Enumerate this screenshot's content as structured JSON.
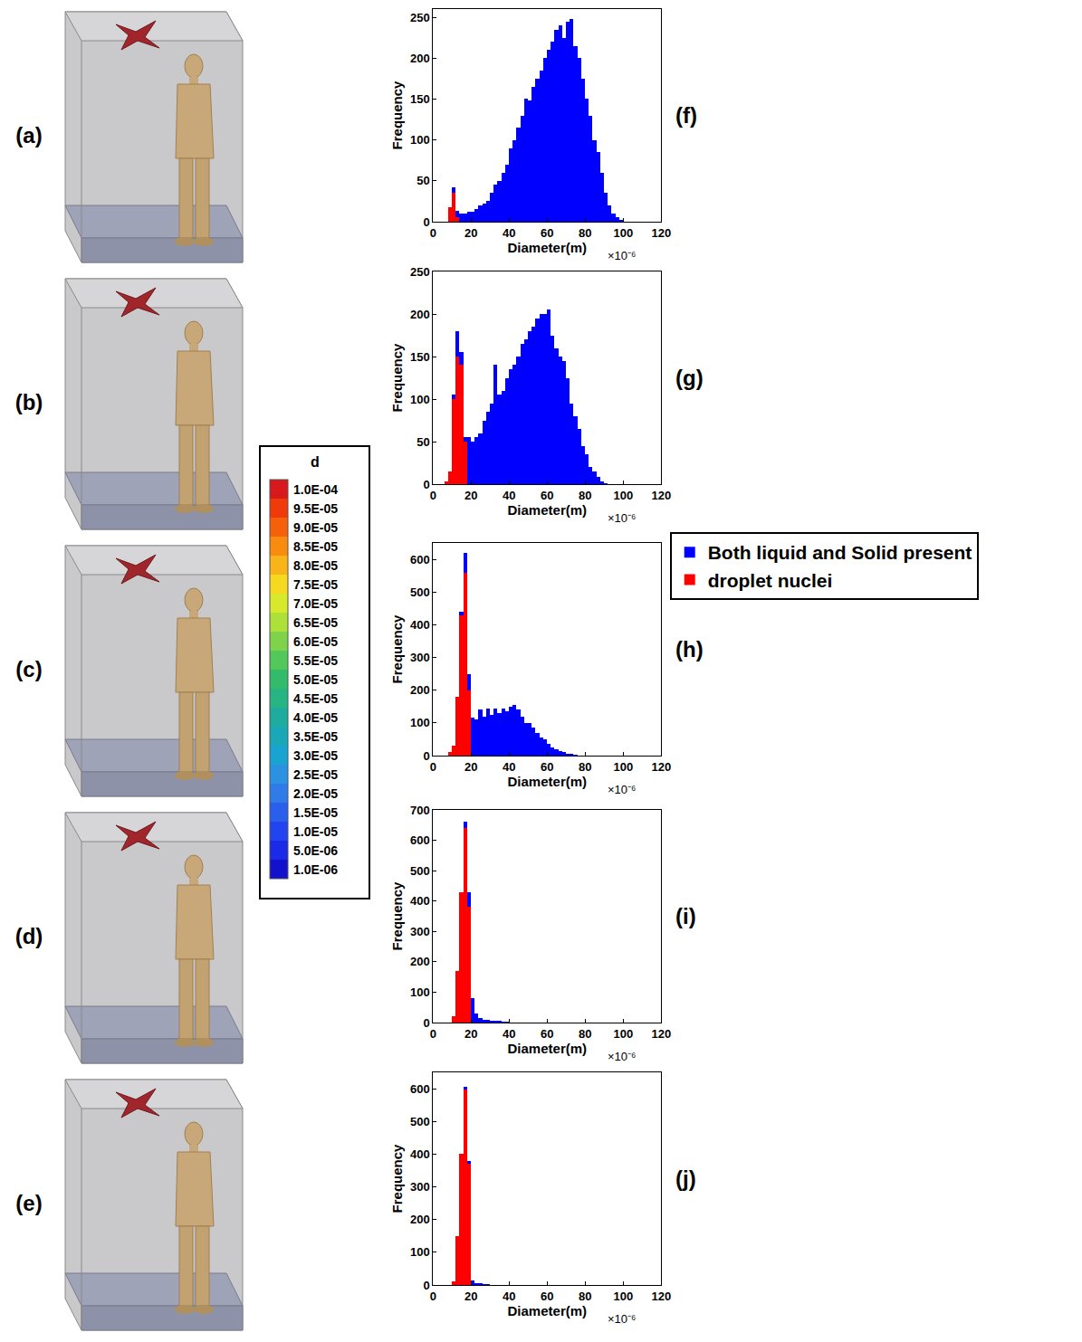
{
  "chart_data": [
    {
      "type": "histogram",
      "title": "(f)",
      "xlabel": "Diameter(m)",
      "ylabel": "Frequency",
      "annotations": [
        "×10⁻⁶"
      ],
      "stacked": true,
      "grid": false,
      "bins": [
        0,
        2,
        4,
        6,
        8,
        10,
        12,
        14,
        16,
        18,
        20,
        22,
        24,
        26,
        28,
        30,
        32,
        34,
        36,
        38,
        40,
        42,
        44,
        46,
        48,
        50,
        52,
        54,
        56,
        58,
        60,
        62,
        64,
        66,
        68,
        70,
        72,
        74,
        76,
        78,
        80,
        82,
        84,
        86,
        88,
        90,
        92,
        94,
        96,
        98,
        100,
        102,
        104,
        106,
        108,
        110,
        112,
        114,
        116,
        118,
        120
      ],
      "xlim": [
        0,
        120
      ],
      "xticks": [
        0,
        20,
        40,
        60,
        80,
        100,
        120
      ],
      "ylim": [
        0,
        260
      ],
      "yticks": [
        0,
        50,
        100,
        150,
        200,
        250
      ],
      "series": [
        {
          "name": "droplet nuclei",
          "color": "#ff0000",
          "values": [
            0,
            0,
            0,
            0,
            18,
            35,
            5,
            0,
            0,
            0,
            0,
            0,
            0,
            0,
            0,
            0,
            0,
            0,
            0,
            0,
            0,
            0,
            0,
            0,
            0,
            0,
            0,
            0,
            0,
            0,
            0,
            0,
            0,
            0,
            0,
            0,
            0,
            0,
            0,
            0,
            0,
            0,
            0,
            0,
            0,
            0,
            0,
            0,
            0,
            0,
            0,
            0,
            0,
            0,
            0,
            0,
            0,
            0,
            0,
            0
          ]
        },
        {
          "name": "Both liquid and Solid present",
          "color": "#0000ff",
          "values": [
            0,
            0,
            0,
            0,
            0,
            7,
            8,
            10,
            10,
            12,
            12,
            15,
            20,
            22,
            25,
            35,
            45,
            50,
            60,
            70,
            90,
            100,
            115,
            130,
            150,
            148,
            165,
            175,
            185,
            200,
            210,
            220,
            235,
            240,
            225,
            245,
            248,
            215,
            200,
            175,
            150,
            130,
            100,
            85,
            60,
            35,
            20,
            10,
            5,
            2,
            0,
            0,
            0,
            0,
            0,
            0,
            0,
            0,
            0,
            0
          ]
        }
      ]
    },
    {
      "type": "histogram",
      "title": "(g)",
      "xlabel": "Diameter(m)",
      "ylabel": "Frequency",
      "annotations": [
        "×10⁻⁶"
      ],
      "stacked": true,
      "grid": false,
      "bins": [
        0,
        2,
        4,
        6,
        8,
        10,
        12,
        14,
        16,
        18,
        20,
        22,
        24,
        26,
        28,
        30,
        32,
        34,
        36,
        38,
        40,
        42,
        44,
        46,
        48,
        50,
        52,
        54,
        56,
        58,
        60,
        62,
        64,
        66,
        68,
        70,
        72,
        74,
        76,
        78,
        80,
        82,
        84,
        86,
        88,
        90,
        92,
        94,
        96,
        98,
        100,
        102,
        104,
        106,
        108,
        110,
        112,
        114,
        116,
        118,
        120
      ],
      "xlim": [
        0,
        120
      ],
      "xticks": [
        0,
        20,
        40,
        60,
        80,
        100,
        120
      ],
      "ylim": [
        0,
        250
      ],
      "yticks": [
        0,
        50,
        100,
        150,
        200,
        250
      ],
      "series": [
        {
          "name": "droplet nuclei",
          "color": "#ff0000",
          "values": [
            0,
            0,
            0,
            3,
            15,
            100,
            150,
            140,
            50,
            0,
            0,
            0,
            0,
            0,
            0,
            0,
            0,
            0,
            0,
            0,
            0,
            0,
            0,
            0,
            0,
            0,
            0,
            0,
            0,
            0,
            0,
            0,
            0,
            0,
            0,
            0,
            0,
            0,
            0,
            0,
            0,
            0,
            0,
            0,
            0,
            0,
            0,
            0,
            0,
            0,
            0,
            0,
            0,
            0,
            0,
            0,
            0,
            0,
            0,
            0
          ]
        },
        {
          "name": "Both liquid and Solid present",
          "color": "#0000ff",
          "values": [
            0,
            0,
            0,
            0,
            0,
            5,
            30,
            15,
            5,
            55,
            50,
            55,
            60,
            75,
            85,
            95,
            140,
            105,
            110,
            125,
            135,
            140,
            150,
            165,
            170,
            180,
            185,
            195,
            200,
            200,
            205,
            175,
            160,
            150,
            145,
            125,
            95,
            80,
            65,
            45,
            35,
            20,
            15,
            8,
            3,
            1,
            0,
            0,
            0,
            0,
            0,
            0,
            0,
            0,
            0,
            0,
            0,
            0,
            0,
            0
          ]
        }
      ]
    },
    {
      "type": "histogram",
      "title": "(h)",
      "xlabel": "Diameter(m)",
      "ylabel": "Frequency",
      "annotations": [
        "×10⁻⁶"
      ],
      "stacked": true,
      "grid": false,
      "legend": "right",
      "bins": [
        0,
        2,
        4,
        6,
        8,
        10,
        12,
        14,
        16,
        18,
        20,
        22,
        24,
        26,
        28,
        30,
        32,
        34,
        36,
        38,
        40,
        42,
        44,
        46,
        48,
        50,
        52,
        54,
        56,
        58,
        60,
        62,
        64,
        66,
        68,
        70,
        72,
        74,
        76,
        78,
        80,
        82,
        84,
        86,
        88,
        90,
        92,
        94,
        96,
        98,
        100,
        102,
        104,
        106,
        108,
        110,
        112,
        114,
        116,
        118,
        120
      ],
      "xlim": [
        0,
        120
      ],
      "xticks": [
        0,
        20,
        40,
        60,
        80,
        100,
        120
      ],
      "ylim": [
        0,
        650
      ],
      "yticks": [
        0,
        100,
        200,
        300,
        400,
        500,
        600
      ],
      "series": [
        {
          "name": "droplet nuclei",
          "color": "#ff0000",
          "values": [
            0,
            0,
            0,
            0,
            10,
            30,
            180,
            430,
            560,
            200,
            0,
            0,
            0,
            0,
            0,
            0,
            0,
            0,
            0,
            0,
            0,
            0,
            0,
            0,
            0,
            0,
            0,
            0,
            0,
            0,
            0,
            0,
            0,
            0,
            0,
            0,
            0,
            0,
            0,
            0,
            0,
            0,
            0,
            0,
            0,
            0,
            0,
            0,
            0,
            0,
            0,
            0,
            0,
            0,
            0,
            0,
            0,
            0,
            0,
            0
          ]
        },
        {
          "name": "Both liquid and Solid present",
          "color": "#0000ff",
          "values": [
            0,
            0,
            0,
            0,
            0,
            0,
            0,
            10,
            60,
            50,
            115,
            110,
            140,
            120,
            145,
            125,
            145,
            130,
            145,
            135,
            150,
            155,
            140,
            120,
            100,
            100,
            85,
            70,
            55,
            50,
            35,
            25,
            20,
            15,
            10,
            5,
            3,
            2,
            0,
            0,
            0,
            0,
            0,
            0,
            0,
            0,
            0,
            0,
            0,
            0,
            0,
            0,
            0,
            0,
            0,
            0,
            0,
            0,
            0,
            0
          ]
        }
      ]
    },
    {
      "type": "histogram",
      "title": "(i)",
      "xlabel": "Diameter(m)",
      "ylabel": "Frequency",
      "annotations": [
        "×10⁻⁶"
      ],
      "stacked": true,
      "grid": false,
      "bins": [
        0,
        2,
        4,
        6,
        8,
        10,
        12,
        14,
        16,
        18,
        20,
        22,
        24,
        26,
        28,
        30,
        32,
        34,
        36,
        38,
        40,
        42,
        44,
        46,
        48,
        50,
        52,
        54,
        56,
        58,
        60,
        62,
        64,
        66,
        68,
        70,
        72,
        74,
        76,
        78,
        80,
        82,
        84,
        86,
        88,
        90,
        92,
        94,
        96,
        98,
        100,
        102,
        104,
        106,
        108,
        110,
        112,
        114,
        116,
        118,
        120
      ],
      "xlim": [
        0,
        120
      ],
      "xticks": [
        0,
        20,
        40,
        60,
        80,
        100,
        120
      ],
      "ylim": [
        0,
        700
      ],
      "yticks": [
        0,
        100,
        200,
        300,
        400,
        500,
        600,
        700
      ],
      "series": [
        {
          "name": "droplet nuclei",
          "color": "#ff0000",
          "values": [
            0,
            0,
            0,
            0,
            0,
            20,
            170,
            430,
            640,
            380,
            0,
            0,
            0,
            0,
            0,
            0,
            0,
            0,
            0,
            0,
            0,
            0,
            0,
            0,
            0,
            0,
            0,
            0,
            0,
            0,
            0,
            0,
            0,
            0,
            0,
            0,
            0,
            0,
            0,
            0,
            0,
            0,
            0,
            0,
            0,
            0,
            0,
            0,
            0,
            0,
            0,
            0,
            0,
            0,
            0,
            0,
            0,
            0,
            0,
            0
          ]
        },
        {
          "name": "Both liquid and Solid present",
          "color": "#0000ff",
          "values": [
            0,
            0,
            0,
            0,
            0,
            0,
            0,
            0,
            20,
            50,
            80,
            30,
            15,
            10,
            8,
            5,
            4,
            3,
            2,
            1,
            0,
            0,
            0,
            0,
            0,
            0,
            0,
            0,
            0,
            0,
            0,
            0,
            0,
            0,
            0,
            0,
            0,
            0,
            0,
            0,
            0,
            0,
            0,
            0,
            0,
            0,
            0,
            0,
            0,
            0,
            0,
            0,
            0,
            0,
            0,
            0,
            0,
            0,
            0,
            0
          ]
        }
      ]
    },
    {
      "type": "histogram",
      "title": "(j)",
      "xlabel": "Diameter(m)",
      "ylabel": "Frequency",
      "annotations": [
        "×10⁻⁶"
      ],
      "stacked": true,
      "grid": false,
      "bins": [
        0,
        2,
        4,
        6,
        8,
        10,
        12,
        14,
        16,
        18,
        20,
        22,
        24,
        26,
        28,
        30,
        32,
        34,
        36,
        38,
        40,
        42,
        44,
        46,
        48,
        50,
        52,
        54,
        56,
        58,
        60,
        62,
        64,
        66,
        68,
        70,
        72,
        74,
        76,
        78,
        80,
        82,
        84,
        86,
        88,
        90,
        92,
        94,
        96,
        98,
        100,
        102,
        104,
        106,
        108,
        110,
        112,
        114,
        116,
        118,
        120
      ],
      "xlim": [
        0,
        120
      ],
      "xticks": [
        0,
        20,
        40,
        60,
        80,
        100,
        120
      ],
      "ylim": [
        0,
        650
      ],
      "yticks": [
        0,
        100,
        200,
        300,
        400,
        500,
        600
      ],
      "series": [
        {
          "name": "droplet nuclei",
          "color": "#ff0000",
          "values": [
            0,
            0,
            0,
            0,
            0,
            10,
            150,
            400,
            600,
            370,
            0,
            0,
            0,
            0,
            0,
            0,
            0,
            0,
            0,
            0,
            0,
            0,
            0,
            0,
            0,
            0,
            0,
            0,
            0,
            0,
            0,
            0,
            0,
            0,
            0,
            0,
            0,
            0,
            0,
            0,
            0,
            0,
            0,
            0,
            0,
            0,
            0,
            0,
            0,
            0,
            0,
            0,
            0,
            0,
            0,
            0,
            0,
            0,
            0,
            0
          ]
        },
        {
          "name": "Both liquid and Solid present",
          "color": "#0000ff",
          "values": [
            0,
            0,
            0,
            0,
            0,
            0,
            0,
            0,
            5,
            10,
            15,
            5,
            3,
            2,
            1,
            0,
            0,
            0,
            0,
            0,
            0,
            0,
            0,
            0,
            0,
            0,
            0,
            0,
            0,
            0,
            0,
            0,
            0,
            0,
            0,
            0,
            0,
            0,
            0,
            0,
            0,
            0,
            0,
            0,
            0,
            0,
            0,
            0,
            0,
            0,
            0,
            0,
            0,
            0,
            0,
            0,
            0,
            0,
            0,
            0
          ]
        }
      ]
    }
  ],
  "scenes": [
    {
      "label": "(a)"
    },
    {
      "label": "(b)"
    },
    {
      "label": "(c)"
    },
    {
      "label": "(d)"
    },
    {
      "label": "(e)"
    }
  ],
  "colorbar": {
    "title": "d",
    "range": [
      1e-06,
      0.0001
    ],
    "ticks": [
      {
        "value": 0.0001,
        "label": "1.0E-04",
        "color": "#d7191c"
      },
      {
        "value": 9.5e-05,
        "label": "9.5E-05",
        "color": "#f03a0a"
      },
      {
        "value": 9e-05,
        "label": "9.0E-05",
        "color": "#f5600a"
      },
      {
        "value": 8.5e-05,
        "label": "8.5E-05",
        "color": "#f88c0f"
      },
      {
        "value": 8e-05,
        "label": "8.0E-05",
        "color": "#f9b41a"
      },
      {
        "value": 7.5e-05,
        "label": "7.5E-05",
        "color": "#f5d820"
      },
      {
        "value": 7e-05,
        "label": "7.0E-05",
        "color": "#d8e82a"
      },
      {
        "value": 6.5e-05,
        "label": "6.5E-05",
        "color": "#aee03a"
      },
      {
        "value": 6e-05,
        "label": "6.0E-05",
        "color": "#7fd34a"
      },
      {
        "value": 5.5e-05,
        "label": "5.5E-05",
        "color": "#52c75a"
      },
      {
        "value": 5e-05,
        "label": "5.0E-05",
        "color": "#32bb6a"
      },
      {
        "value": 4.5e-05,
        "label": "4.5E-05",
        "color": "#25b482"
      },
      {
        "value": 4e-05,
        "label": "4.0E-05",
        "color": "#1eac9e"
      },
      {
        "value": 3.5e-05,
        "label": "3.5E-05",
        "color": "#1aa7b8"
      },
      {
        "value": 3e-05,
        "label": "3.0E-05",
        "color": "#18a3d0"
      },
      {
        "value": 2.5e-05,
        "label": "2.5E-05",
        "color": "#2a92e0"
      },
      {
        "value": 2e-05,
        "label": "2.0E-05",
        "color": "#2f7be8"
      },
      {
        "value": 1.5e-05,
        "label": "1.5E-05",
        "color": "#2a5fec"
      },
      {
        "value": 1e-05,
        "label": "1.0E-05",
        "color": "#2244ee"
      },
      {
        "value": 5e-06,
        "label": "5.0E-06",
        "color": "#1a2ae6"
      },
      {
        "value": 1e-06,
        "label": "1.0E-06",
        "color": "#1212cc"
      }
    ]
  }
}
